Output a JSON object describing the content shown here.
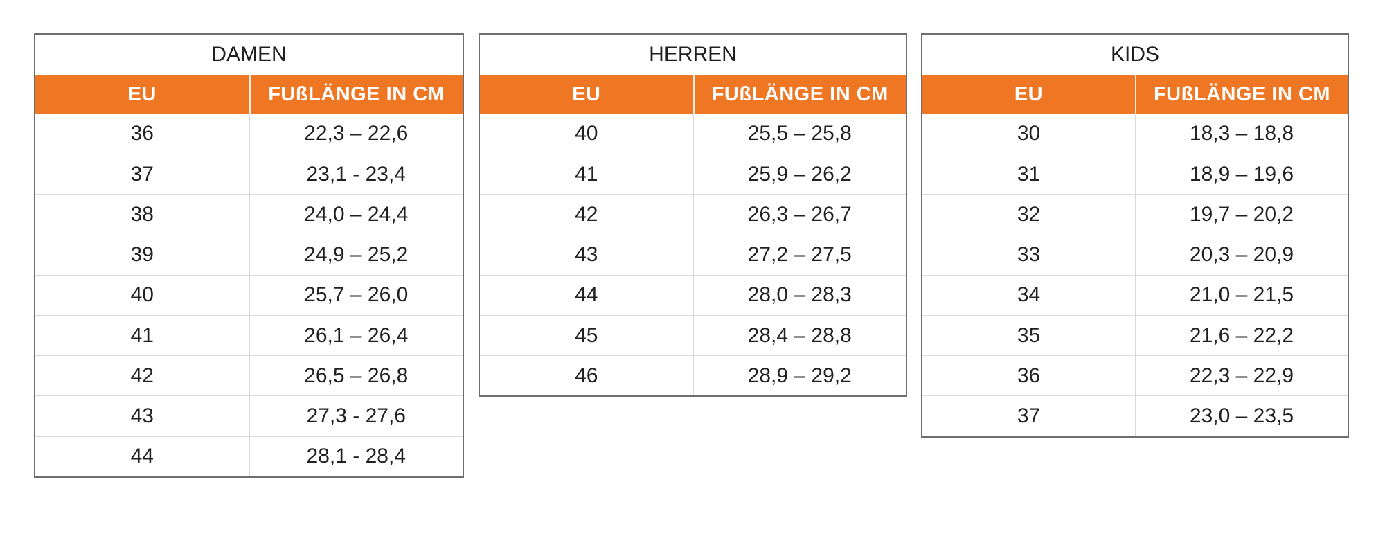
{
  "colors": {
    "accent_orange": "#EF7622",
    "header_text": "#FFFFFF",
    "body_text": "#212121",
    "outer_border": "#6E6E6E",
    "grid_line": "#D9D9D9"
  },
  "chart_data": [
    {
      "type": "table",
      "title": "DAMEN",
      "columns": [
        "EU",
        "FUßLÄNGE IN CM"
      ],
      "rows": [
        [
          "36",
          "22,3 – 22,6"
        ],
        [
          "37",
          "23,1 - 23,4"
        ],
        [
          "38",
          "24,0 – 24,4"
        ],
        [
          "39",
          "24,9 – 25,2"
        ],
        [
          "40",
          "25,7 – 26,0"
        ],
        [
          "41",
          "26,1 – 26,4"
        ],
        [
          "42",
          "26,5 – 26,8"
        ],
        [
          "43",
          "27,3 - 27,6"
        ],
        [
          "44",
          "28,1 - 28,4"
        ]
      ]
    },
    {
      "type": "table",
      "title": "HERREN",
      "columns": [
        "EU",
        "FUßLÄNGE IN CM"
      ],
      "rows": [
        [
          "40",
          "25,5 – 25,8"
        ],
        [
          "41",
          "25,9 – 26,2"
        ],
        [
          "42",
          "26,3 – 26,7"
        ],
        [
          "43",
          "27,2 – 27,5"
        ],
        [
          "44",
          "28,0 – 28,3"
        ],
        [
          "45",
          "28,4 – 28,8"
        ],
        [
          "46",
          "28,9 – 29,2"
        ]
      ]
    },
    {
      "type": "table",
      "title": "KIDS",
      "columns": [
        "EU",
        "FUßLÄNGE IN CM"
      ],
      "rows": [
        [
          "30",
          "18,3 – 18,8"
        ],
        [
          "31",
          "18,9 – 19,6"
        ],
        [
          "32",
          "19,7 – 20,2"
        ],
        [
          "33",
          "20,3 – 20,9"
        ],
        [
          "34",
          "21,0 – 21,5"
        ],
        [
          "35",
          "21,6 – 22,2"
        ],
        [
          "36",
          "22,3 – 22,9"
        ],
        [
          "37",
          "23,0 – 23,5"
        ]
      ]
    }
  ]
}
